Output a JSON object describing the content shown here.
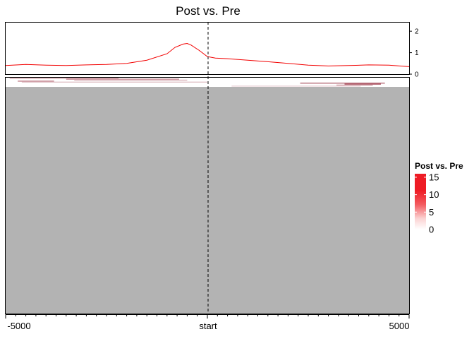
{
  "chart_data": {
    "title": "Post vs. Pre",
    "profile": {
      "type": "line",
      "color": "#f20000",
      "x": [
        -5000,
        -4500,
        -4000,
        -3500,
        -3000,
        -2500,
        -2000,
        -1500,
        -1000,
        -800,
        -600,
        -500,
        -400,
        -200,
        0,
        200,
        500,
        1000,
        1500,
        2000,
        2500,
        3000,
        3500,
        4000,
        4500,
        5000
      ],
      "values": [
        0.4,
        0.45,
        0.42,
        0.4,
        0.43,
        0.45,
        0.5,
        0.65,
        0.95,
        1.25,
        1.4,
        1.43,
        1.35,
        1.1,
        0.82,
        0.75,
        0.72,
        0.65,
        0.58,
        0.5,
        0.42,
        0.38,
        0.4,
        0.43,
        0.42,
        0.35
      ],
      "ylim": [
        0,
        2.4
      ],
      "yticks": [
        "0",
        "1",
        "2"
      ],
      "ytick_values": [
        0,
        1,
        2
      ]
    },
    "heatmap": {
      "type": "heatmap",
      "background_color": "#b3b3b3",
      "rows_with_signal": [
        {
          "start": -4900,
          "end": -2200,
          "intensity": 6
        },
        {
          "start": -3500,
          "end": -700,
          "intensity": 8
        },
        {
          "start": -3300,
          "end": -500,
          "intensity": 5
        },
        {
          "start": -4700,
          "end": -3800,
          "intensity": 9
        },
        {
          "start": -4600,
          "end": 0,
          "intensity": 4
        },
        {
          "start": 2300,
          "end": 4400,
          "intensity": 10
        },
        {
          "start": 3400,
          "end": 4300,
          "intensity": 12
        },
        {
          "start": 3200,
          "end": 4100,
          "intensity": 7
        },
        {
          "start": 600,
          "end": 3800,
          "intensity": 3
        }
      ]
    },
    "x_axis": {
      "range": [
        -5000,
        5000
      ],
      "tick_labels": [
        "-5000",
        "start",
        "5000"
      ],
      "tick_values": [
        -5000,
        0,
        5000
      ],
      "minor_ticks_per_side": 20
    },
    "legend": {
      "title": "Post vs. Pre",
      "labels": [
        "15",
        "10",
        "5",
        "0"
      ],
      "values": [
        15,
        10,
        5,
        0
      ],
      "range": [
        0,
        16
      ],
      "color_low": "#ffffff",
      "color_high": "#ee1c25",
      "placement": "right"
    },
    "reference_line": {
      "x": 0,
      "style": "dashed"
    }
  }
}
